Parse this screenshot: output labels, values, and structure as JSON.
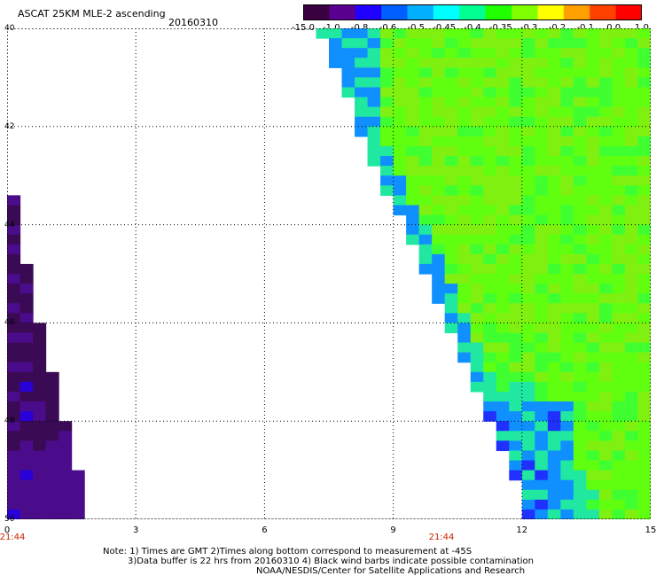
{
  "header": {
    "title": "ASCAT 25KM MLE-2 ascending",
    "date": "20160310"
  },
  "colorbar": {
    "labels": [
      "-15.0",
      "-1.0",
      "-0.8",
      "-0.6",
      "-0.5",
      "-0.45",
      "-0.4",
      "-0.35",
      "-0.3",
      "-0.2",
      "-0.1",
      "0.0",
      "1.0"
    ],
    "colors": [
      "#3a0040",
      "#5a0090",
      "#2000ff",
      "#0060ff",
      "#00b0ff",
      "#00ffff",
      "#00ff90",
      "#20ff00",
      "#80ff00",
      "#ffff00",
      "#ffa000",
      "#ff4000",
      "#ff0000"
    ]
  },
  "axes": {
    "x_ticks": [
      "0",
      "3",
      "6",
      "9",
      "12",
      "15"
    ],
    "x_range": [
      0,
      15
    ],
    "y_ticks": [
      "40",
      "42",
      "44",
      "46",
      "48",
      "50"
    ],
    "y_range": [
      40,
      50
    ],
    "grid": true
  },
  "swaths": [
    {
      "time_label": "21:44",
      "time_x": 0,
      "edge": [
        [
          0.0,
          43.0
        ],
        [
          0.15,
          43.5
        ],
        [
          0.35,
          44.3
        ],
        [
          0.55,
          45.2
        ],
        [
          0.85,
          46.3
        ],
        [
          1.2,
          47.6
        ],
        [
          1.6,
          48.9
        ],
        [
          1.9,
          50.0
        ]
      ],
      "colors": [
        "#3a0a55",
        "#4a0c8a",
        "#2a00d8"
      ]
    },
    {
      "time_label": "21:44",
      "time_x": 10.0,
      "edge": [
        [
          7.2,
          40.0
        ],
        [
          7.8,
          41.0
        ],
        [
          8.4,
          42.6
        ],
        [
          9.0,
          43.6
        ],
        [
          9.7,
          45.0
        ],
        [
          10.5,
          46.5
        ],
        [
          11.2,
          48.0
        ],
        [
          12.0,
          49.5
        ],
        [
          12.1,
          50.0
        ]
      ],
      "colors": [
        "#60ff10",
        "#40ff30",
        "#80f010",
        "#20e8a0",
        "#1090ff",
        "#2030ff"
      ]
    }
  ],
  "notes": {
    "line1": "Note: 1) Times are GMT 2)Times along bottom correspond to measurement at -45S",
    "line2": "3)Data buffer is 22 hrs from 20160310 4) Black wind barbs indicate possible contamination",
    "line3": "NOAA/NESDIS/Center for Satellite Applications and Research"
  }
}
